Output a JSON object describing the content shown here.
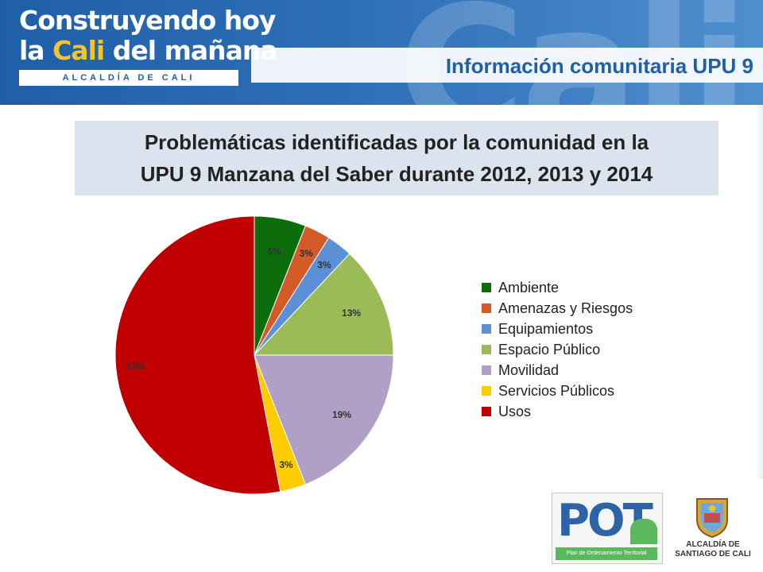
{
  "header": {
    "brand_line1": "Construyendo hoy",
    "brand_line2_la": "la ",
    "brand_line2_cali": "Cali",
    "brand_line2_rest": " del mañana",
    "brand_alcaldia": "ALCALDÍA DE CALI",
    "watermark": "Cali",
    "title": "Información comunitaria UPU 9"
  },
  "subtitle": {
    "line1": "Problemáticas identificadas por la comunidad en la",
    "line2": "UPU 9 Manzana del Saber  durante 2012, 2013 y 2014"
  },
  "chart_data": {
    "type": "pie",
    "start_angle": "12 o'clock, clockwise",
    "legend_position": "right",
    "slices": [
      {
        "label": "Ambiente",
        "value": 6,
        "data_label": "6%",
        "color": "#0b6e0b"
      },
      {
        "label": "Amenazas y Riesgos",
        "value": 3,
        "data_label": "3%",
        "color": "#d45a27"
      },
      {
        "label": "Equipamientos",
        "value": 3,
        "data_label": "3%",
        "color": "#5b8fd6"
      },
      {
        "label": "Espacio Público",
        "value": 13,
        "data_label": "13%",
        "color": "#9bbb59"
      },
      {
        "label": "Movilidad",
        "value": 19,
        "data_label": "19%",
        "color": "#b0a0c8"
      },
      {
        "label": "Servicios Públicos",
        "value": 3,
        "data_label": "3%",
        "color": "#ffcc00"
      },
      {
        "label": "Usos",
        "value": 53,
        "data_label": "53%",
        "color": "#c00000"
      }
    ]
  },
  "footer": {
    "pot_word": "POT",
    "pot_caption": "Plan de Ordenamiento Territorial",
    "alcaldia_line1": "ALCALDÍA DE",
    "alcaldia_line2": "SANTIAGO DE CALI"
  }
}
